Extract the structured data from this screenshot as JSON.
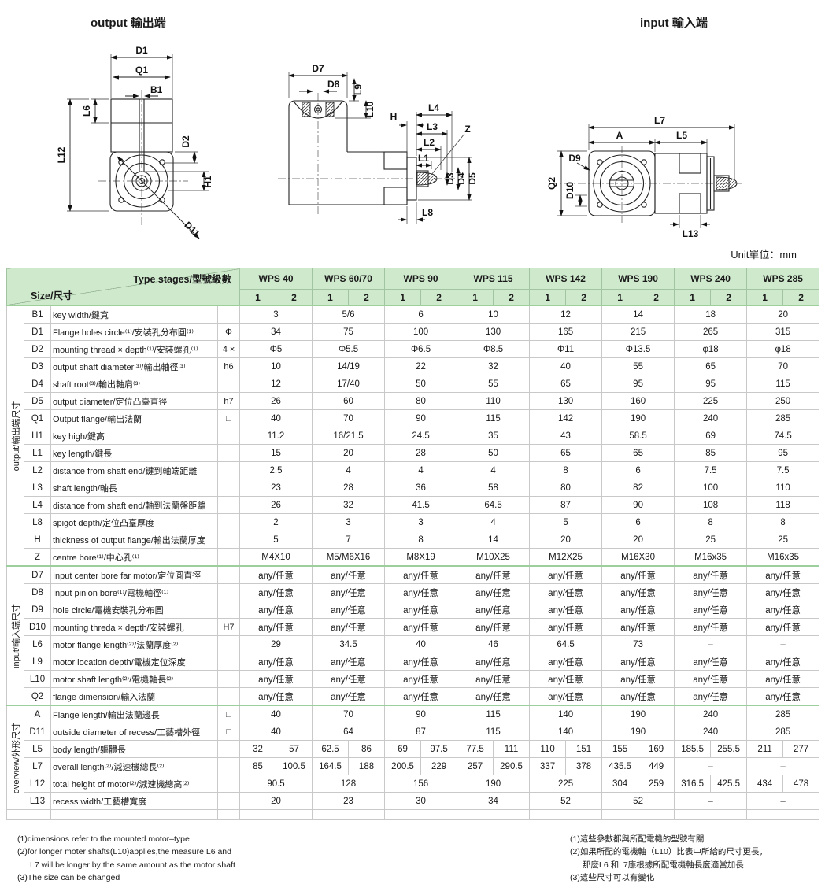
{
  "unit_label": "Unit單位：mm",
  "diagrams": {
    "output_title": "output 輸出端",
    "input_title": "input 輸入端",
    "output_labels": {
      "D1": "D1",
      "Q1": "Q1",
      "B1": "B1",
      "L6": "L6",
      "L12": "L12",
      "D2": "D2",
      "H1": "H1",
      "D11": "D11"
    },
    "section_labels": {
      "D7": "D7",
      "D8": "D8",
      "L9": "L9",
      "L10": "L10",
      "H": "H",
      "L4": "L4",
      "L3": "L3",
      "L2": "L2",
      "L1": "L1",
      "Z": "Z",
      "D3": "D3",
      "D4": "D4",
      "D5": "D5",
      "L8": "L8"
    },
    "input_labels": {
      "L7": "L7",
      "A": "A",
      "L5": "L5",
      "D9": "D9",
      "Q2": "Q2",
      "D10": "D10",
      "L13": "L13"
    }
  },
  "table": {
    "corner_top": "Type stages/型號級數",
    "corner_bottom": "Size/尺寸",
    "models": [
      "WPS 40",
      "WPS 60/70",
      "WPS 90",
      "WPS 115",
      "WPS 142",
      "WPS 190",
      "WPS 240",
      "WPS 285"
    ],
    "stages": [
      "1",
      "2"
    ],
    "sections": [
      {
        "label": "output/輸出端尺寸",
        "rows": [
          {
            "code": "B1",
            "desc": "key width/鍵寬",
            "sym": "",
            "cells": [
              "3",
              "5/6",
              "6",
              "10",
              "12",
              "14",
              "18",
              "20"
            ]
          },
          {
            "code": "D1",
            "desc": "Flange holes circle⁽¹⁾/安裝孔分布圓⁽¹⁾",
            "sym": "Φ",
            "cells": [
              "34",
              "75",
              "100",
              "130",
              "165",
              "215",
              "265",
              "315"
            ]
          },
          {
            "code": "D2",
            "desc": "mounting thread × depth⁽¹⁾/安裝螺孔⁽¹⁾",
            "sym": "4 ×",
            "cells": [
              "Φ5",
              "Φ5.5",
              "Φ6.5",
              "Φ8.5",
              "Φ11",
              "Φ13.5",
              "φ18",
              "φ18"
            ]
          },
          {
            "code": "D3",
            "desc": "output shaft diameter⁽³⁾/輸出軸徑⁽³⁾",
            "sym": "h6",
            "cells": [
              "10",
              "14/19",
              "22",
              "32",
              "40",
              "55",
              "65",
              "70"
            ]
          },
          {
            "code": "D4",
            "desc": "shaft root⁽³⁾/輸出軸肩⁽³⁾",
            "sym": "",
            "cells": [
              "12",
              "17/40",
              "50",
              "55",
              "65",
              "95",
              "95",
              "115"
            ]
          },
          {
            "code": "D5",
            "desc": "output diameter/定位凸臺直徑",
            "sym": "h7",
            "cells": [
              "26",
              "60",
              "80",
              "110",
              "130",
              "160",
              "225",
              "250"
            ]
          },
          {
            "code": "Q1",
            "desc": "Output flange/輸出法蘭",
            "sym": "□",
            "cells": [
              "40",
              "70",
              "90",
              "115",
              "142",
              "190",
              "240",
              "285"
            ]
          },
          {
            "code": "H1",
            "desc": "key high/鍵高",
            "sym": "",
            "cells": [
              "11.2",
              "16/21.5",
              "24.5",
              "35",
              "43",
              "58.5",
              "69",
              "74.5"
            ]
          },
          {
            "code": "L1",
            "desc": "key length/鍵長",
            "sym": "",
            "cells": [
              "15",
              "20",
              "28",
              "50",
              "65",
              "65",
              "85",
              "95"
            ]
          },
          {
            "code": "L2",
            "desc": "distance from shaft end/鍵到軸端距離",
            "sym": "",
            "cells": [
              "2.5",
              "4",
              "4",
              "4",
              "8",
              "6",
              "7.5",
              "7.5"
            ]
          },
          {
            "code": "L3",
            "desc": "shaft length/軸長",
            "sym": "",
            "cells": [
              "23",
              "28",
              "36",
              "58",
              "80",
              "82",
              "100",
              "110"
            ]
          },
          {
            "code": "L4",
            "desc": "distance from shaft end/軸到法蘭盤距離",
            "sym": "",
            "cells": [
              "26",
              "32",
              "41.5",
              "64.5",
              "87",
              "90",
              "108",
              "118"
            ]
          },
          {
            "code": "L8",
            "desc": "spigot depth/定位凸臺厚度",
            "sym": "",
            "cells": [
              "2",
              "3",
              "3",
              "4",
              "5",
              "6",
              "8",
              "8"
            ]
          },
          {
            "code": "H",
            "desc": "thickness of output flange/輸出法蘭厚度",
            "sym": "",
            "cells": [
              "5",
              "7",
              "8",
              "14",
              "20",
              "20",
              "25",
              "25"
            ]
          },
          {
            "code": "Z",
            "desc": "centre bore⁽¹⁾/中心孔⁽¹⁾",
            "sym": "",
            "cells": [
              "M4X10",
              "M5/M6X16",
              "M8X19",
              "M10X25",
              "M12X25",
              "M16X30",
              "M16x35",
              "M16x35"
            ]
          }
        ]
      },
      {
        "label": "input/輸入端尺寸",
        "rows": [
          {
            "code": "D7",
            "desc": "Input center bore far motor/定位圓直徑",
            "sym": "",
            "cells": [
              "any/任意",
              "any/任意",
              "any/任意",
              "any/任意",
              "any/任意",
              "any/任意",
              "any/任意",
              "any/任意"
            ]
          },
          {
            "code": "D8",
            "desc": "Input pinion bore⁽¹⁾/電機軸徑⁽¹⁾",
            "sym": "",
            "cells": [
              "any/任意",
              "any/任意",
              "any/任意",
              "any/任意",
              "any/任意",
              "any/任意",
              "any/任意",
              "any/任意"
            ]
          },
          {
            "code": "D9",
            "desc": "hole circle/電機安裝孔分布圓",
            "sym": "",
            "cells": [
              "any/任意",
              "any/任意",
              "any/任意",
              "any/任意",
              "any/任意",
              "any/任意",
              "any/任意",
              "any/任意"
            ]
          },
          {
            "code": "D10",
            "desc": "mounting threda × depth/安裝螺孔",
            "sym": "H7",
            "cells": [
              "any/任意",
              "any/任意",
              "any/任意",
              "any/任意",
              "any/任意",
              "any/任意",
              "any/任意",
              "any/任意"
            ]
          },
          {
            "code": "L6",
            "desc": "motor flange length⁽²⁾/法蘭厚度⁽²⁾",
            "sym": "",
            "cells": [
              "29",
              "34.5",
              "40",
              "46",
              "64.5",
              "73",
              "–",
              "–"
            ]
          },
          {
            "code": "L9",
            "desc": "motor location depth/電機定位深度",
            "sym": "",
            "cells": [
              "any/任意",
              "any/任意",
              "any/任意",
              "any/任意",
              "any/任意",
              "any/任意",
              "any/任意",
              "any/任意"
            ]
          },
          {
            "code": "L10",
            "desc": "motor shaft length⁽²⁾/電機軸長⁽²⁾",
            "sym": "",
            "cells": [
              "any/任意",
              "any/任意",
              "any/任意",
              "any/任意",
              "any/任意",
              "any/任意",
              "any/任意",
              "any/任意"
            ]
          },
          {
            "code": "Q2",
            "desc": "flange dimension/輸入法蘭",
            "sym": "",
            "cells": [
              "any/任意",
              "any/任意",
              "any/任意",
              "any/任意",
              "any/任意",
              "any/任意",
              "any/任意",
              "any/任意"
            ]
          }
        ]
      },
      {
        "label": "overview/外形尺寸",
        "rows": [
          {
            "code": "A",
            "desc": "Flange length/輸出法蘭邊長",
            "sym": "□",
            "cells": [
              "40",
              "70",
              "90",
              "115",
              "140",
              "190",
              "240",
              "285"
            ]
          },
          {
            "code": "D11",
            "desc": "outside diameter of recess/工藝槽外徑",
            "sym": "□",
            "cells": [
              "40",
              "64",
              "87",
              "115",
              "140",
              "190",
              "240",
              "285"
            ]
          },
          {
            "code": "L5",
            "desc": "body length/軀體長",
            "sym": "",
            "cells": [
              [
                "32",
                "57"
              ],
              [
                "62.5",
                "86"
              ],
              [
                "69",
                "97.5"
              ],
              [
                "77.5",
                "111"
              ],
              [
                "110",
                "151"
              ],
              [
                "155",
                "169"
              ],
              [
                "185.5",
                "255.5"
              ],
              [
                "211",
                "277"
              ]
            ]
          },
          {
            "code": "L7",
            "desc": "overall length⁽²⁾/減速機總長⁽²⁾",
            "sym": "",
            "cells": [
              [
                "85",
                "100.5"
              ],
              [
                "164.5",
                "188"
              ],
              [
                "200.5",
                "229"
              ],
              [
                "257",
                "290.5"
              ],
              [
                "337",
                "378"
              ],
              [
                "435.5",
                "449"
              ],
              "–",
              "–"
            ]
          },
          {
            "code": "L12",
            "desc": "total height of motor⁽²⁾/減速機總高⁽²⁾",
            "sym": "",
            "cells": [
              "90.5",
              "128",
              "156",
              "190",
              "225",
              [
                "304",
                "259"
              ],
              [
                "316.5",
                "425.5"
              ],
              [
                "434",
                "478"
              ]
            ]
          },
          {
            "code": "L13",
            "desc": "recess width/工藝槽寬度",
            "sym": "",
            "cells": [
              "20",
              "23",
              "30",
              "34",
              "52",
              "52",
              "–",
              "–"
            ]
          }
        ]
      }
    ]
  },
  "footnotes": {
    "en": [
      "(1)dimensions refer to the mounted motor–type",
      "(2)for longer moter shafts(L10)applies,the measure L6 and",
      "L7 will be longer by the same amount as the motor shaft",
      "(3)The size can be changed"
    ],
    "zh": [
      "(1)這些參數都與所配電機的型號有關",
      "(2)如果所配的電機軸（L10）比表中所給的尺寸更長，",
      "那麼L6 和L7應根據所配電機軸長度適當加長",
      "(3)這些尺寸可以有變化"
    ]
  }
}
